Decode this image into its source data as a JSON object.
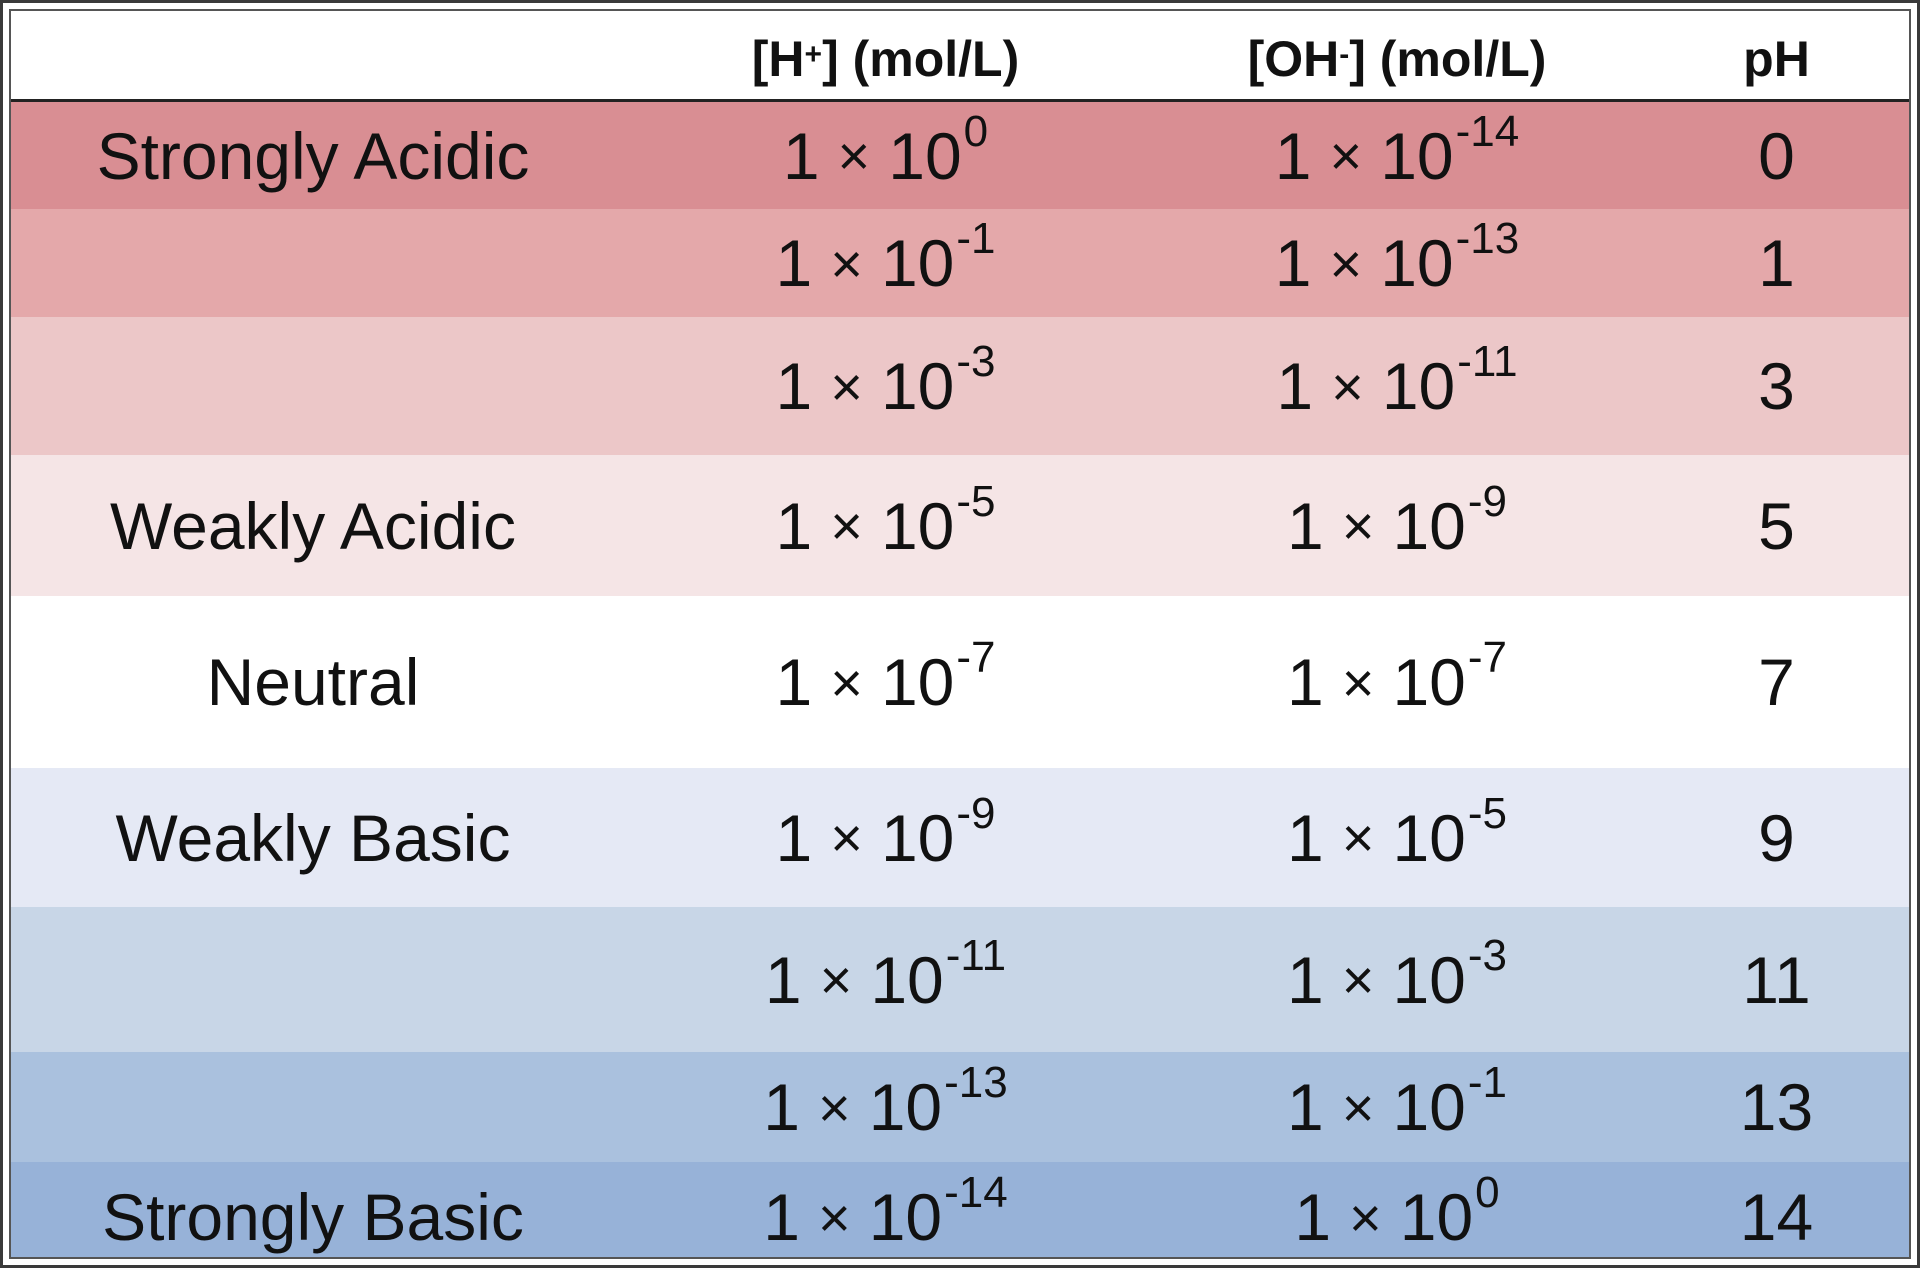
{
  "header": {
    "col0": "",
    "col1_base": "[H",
    "col1_sup": "+",
    "col1_rest": "] (mol/L)",
    "col2_base": "[OH",
    "col2_sup": "-",
    "col2_rest": "] (mol/L)",
    "col3": "pH"
  },
  "colors": {
    "strong_acid": "#d98e93",
    "acid_1": "#e4a8aa",
    "acid_3": "#ecc7c8",
    "weak_acid": "#f5e5e6",
    "neutral": "#ffffff",
    "weak_base": "#e5e9f5",
    "base_11": "#c8d6e7",
    "base_13": "#aac1de",
    "strong_base": "#97b2d8"
  },
  "rows": [
    {
      "label": "Strongly Acidic",
      "h_coef": "1",
      "h_times": "×",
      "h_base": "10",
      "h_exp": "0",
      "oh_coef": "1",
      "oh_times": "×",
      "oh_base": "10",
      "oh_exp": "-14",
      "ph": "0"
    },
    {
      "label": "",
      "h_coef": "1",
      "h_times": "×",
      "h_base": "10",
      "h_exp": "-1",
      "oh_coef": "1",
      "oh_times": "×",
      "oh_base": "10",
      "oh_exp": "-13",
      "ph": "1"
    },
    {
      "label": "",
      "h_coef": "1",
      "h_times": "×",
      "h_base": "10",
      "h_exp": "-3",
      "oh_coef": "1",
      "oh_times": "×",
      "oh_base": "10",
      "oh_exp": "-11",
      "ph": "3"
    },
    {
      "label": "Weakly Acidic",
      "h_coef": "1",
      "h_times": "×",
      "h_base": "10",
      "h_exp": "-5",
      "oh_coef": "1",
      "oh_times": "×",
      "oh_base": "10",
      "oh_exp": "-9",
      "ph": "5"
    },
    {
      "label": "Neutral",
      "h_coef": "1",
      "h_times": "×",
      "h_base": "10",
      "h_exp": "-7",
      "oh_coef": "1",
      "oh_times": "×",
      "oh_base": "10",
      "oh_exp": "-7",
      "ph": "7"
    },
    {
      "label": "Weakly Basic",
      "h_coef": "1",
      "h_times": "×",
      "h_base": "10",
      "h_exp": "-9",
      "oh_coef": "1",
      "oh_times": "×",
      "oh_base": "10",
      "oh_exp": "-5",
      "ph": "9"
    },
    {
      "label": "",
      "h_coef": "1",
      "h_times": "×",
      "h_base": "10",
      "h_exp": "-11",
      "oh_coef": "1",
      "oh_times": "×",
      "oh_base": "10",
      "oh_exp": "-3",
      "ph": "11"
    },
    {
      "label": "",
      "h_coef": "1",
      "h_times": "×",
      "h_base": "10",
      "h_exp": "-13",
      "oh_coef": "1",
      "oh_times": "×",
      "oh_base": "10",
      "oh_exp": "-1",
      "ph": "13"
    },
    {
      "label": "Strongly Basic",
      "h_coef": "1",
      "h_times": "×",
      "h_base": "10",
      "h_exp": "-14",
      "oh_coef": "1",
      "oh_times": "×",
      "oh_base": "10",
      "oh_exp": "0",
      "ph": "14"
    }
  ]
}
